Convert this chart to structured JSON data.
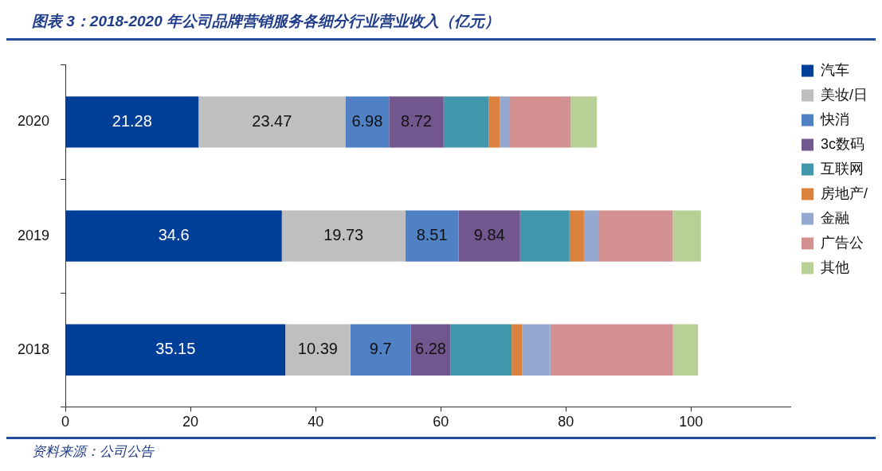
{
  "chart_data": {
    "type": "bar",
    "orientation": "horizontal",
    "stacked": true,
    "title": "图表 3：2018-2020 年公司品牌营销服务各细分行业营业收入（亿元）",
    "categories": [
      "2020",
      "2019",
      "2018"
    ],
    "series": [
      {
        "name": "汽车",
        "color": "#003f98",
        "values": [
          21.28,
          34.6,
          35.15
        ],
        "value_labels": [
          "21.28",
          "34.6",
          "35.15"
        ]
      },
      {
        "name": "美妆/日",
        "color": "#bfbfbf",
        "values": [
          23.47,
          19.73,
          10.39
        ],
        "value_labels": [
          "23.47",
          "19.73",
          "10.39"
        ]
      },
      {
        "name": "快消",
        "color": "#4f81c4",
        "values": [
          6.98,
          8.51,
          9.7
        ],
        "value_labels": [
          "6.98",
          "8.51",
          "9.7"
        ]
      },
      {
        "name": "3c数码",
        "color": "#72578f",
        "values": [
          8.72,
          9.84,
          6.28
        ],
        "value_labels": [
          "8.72",
          "9.84",
          "6.28"
        ]
      },
      {
        "name": "互联网",
        "color": "#4297ac",
        "values": [
          7.2,
          7.9,
          9.8
        ]
      },
      {
        "name": "房地产/",
        "color": "#db823e",
        "values": [
          1.8,
          2.3,
          1.7
        ]
      },
      {
        "name": "金融",
        "color": "#94a8d0",
        "values": [
          1.6,
          2.3,
          4.5
        ]
      },
      {
        "name": "广告公",
        "color": "#d39090",
        "values": [
          9.7,
          11.9,
          19.6
        ]
      },
      {
        "name": "其他",
        "color": "#b8d095",
        "values": [
          4.2,
          4.5,
          4.0
        ]
      }
    ],
    "xlim": [
      0,
      116
    ],
    "xticks": [
      0,
      20,
      40,
      60,
      80,
      100
    ],
    "legend": "right",
    "annotations": [
      "资料来源：公司公告"
    ]
  }
}
